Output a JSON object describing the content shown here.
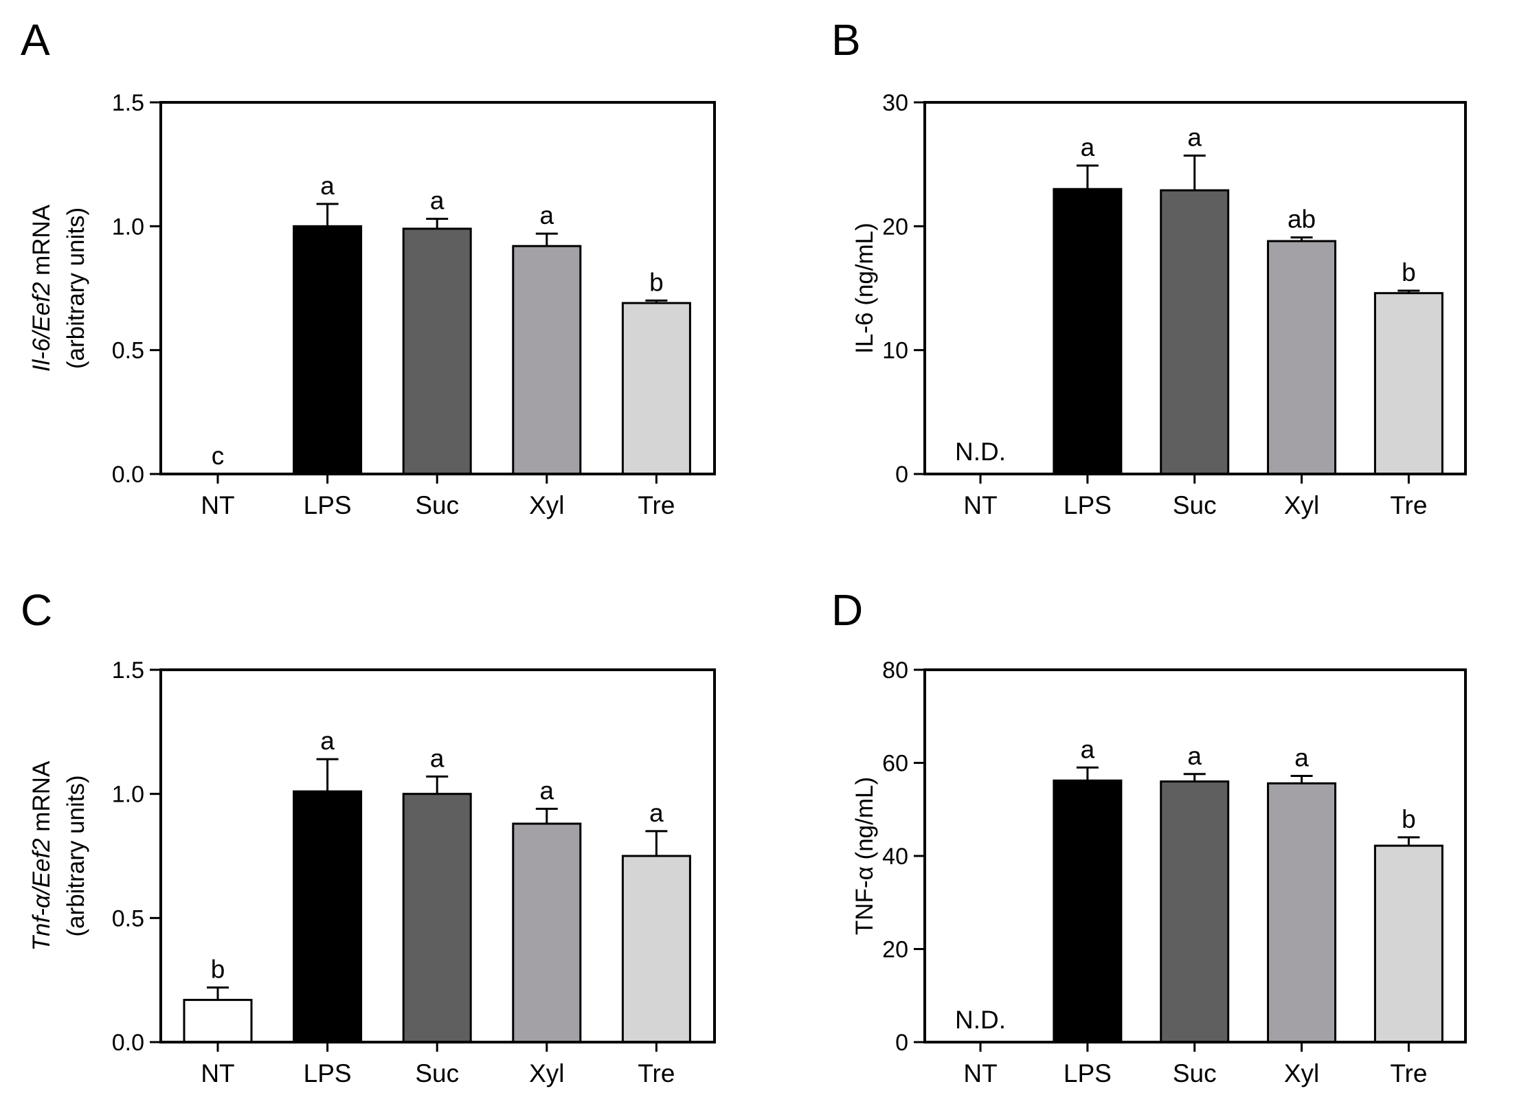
{
  "chart_data": [
    {
      "panel": "A",
      "type": "bar",
      "ylabel_parts": [
        {
          "text": "Il-6",
          "italic": true
        },
        {
          "text": "/",
          "italic": true
        },
        {
          "text": "Eef2",
          "italic": true
        },
        {
          "text": " mRNA",
          "italic": false
        }
      ],
      "ylabel_line2": "(arbitrary units)",
      "ylim": [
        0,
        1.5
      ],
      "yticks": [
        "0.0",
        "0.5",
        "1.0",
        "1.5"
      ],
      "yticks_values": [
        0,
        0.5,
        1.0,
        1.5
      ],
      "categories": [
        "NT",
        "LPS",
        "Suc",
        "Xyl",
        "Tre"
      ],
      "values": [
        0,
        1.0,
        0.99,
        0.92,
        0.69
      ],
      "errors": [
        0,
        0.09,
        0.04,
        0.05,
        0.01
      ],
      "significance": [
        "c",
        "a",
        "a",
        "a",
        "b"
      ],
      "not_detected": [
        false,
        false,
        false,
        false,
        false
      ],
      "nd_label": ""
    },
    {
      "panel": "B",
      "type": "bar",
      "ylabel_parts": [
        {
          "text": "IL-6 (ng/mL)",
          "italic": false
        }
      ],
      "ylabel_line2": "",
      "ylim": [
        0,
        30
      ],
      "yticks": [
        "0",
        "10",
        "20",
        "30"
      ],
      "yticks_values": [
        0,
        10,
        20,
        30
      ],
      "categories": [
        "NT",
        "LPS",
        "Suc",
        "Xyl",
        "Tre"
      ],
      "values": [
        0,
        23.0,
        22.9,
        18.8,
        14.6
      ],
      "errors": [
        0,
        1.9,
        2.8,
        0.3,
        0.2
      ],
      "significance": [
        "",
        "a",
        "a",
        "ab",
        "b"
      ],
      "not_detected": [
        true,
        false,
        false,
        false,
        false
      ],
      "nd_label": "N.D."
    },
    {
      "panel": "C",
      "type": "bar",
      "ylabel_parts": [
        {
          "text": "Tnf-α",
          "italic": true
        },
        {
          "text": "/",
          "italic": true
        },
        {
          "text": "Eef2",
          "italic": true
        },
        {
          "text": " mRNA",
          "italic": false
        }
      ],
      "ylabel_line2": "(arbitrary units)",
      "ylim": [
        0,
        1.5
      ],
      "yticks": [
        "0.0",
        "0.5",
        "1.0",
        "1.5"
      ],
      "yticks_values": [
        0,
        0.5,
        1.0,
        1.5
      ],
      "categories": [
        "NT",
        "LPS",
        "Suc",
        "Xyl",
        "Tre"
      ],
      "values": [
        0.17,
        1.01,
        1.0,
        0.88,
        0.75
      ],
      "errors": [
        0.05,
        0.13,
        0.07,
        0.06,
        0.1
      ],
      "significance": [
        "b",
        "a",
        "a",
        "a",
        "a"
      ],
      "not_detected": [
        false,
        false,
        false,
        false,
        false
      ],
      "nd_label": ""
    },
    {
      "panel": "D",
      "type": "bar",
      "ylabel_parts": [
        {
          "text": "TNF-α (ng/mL)",
          "italic": false
        }
      ],
      "ylabel_line2": "",
      "ylim": [
        0,
        80
      ],
      "yticks": [
        "0",
        "20",
        "40",
        "60",
        "80"
      ],
      "yticks_values": [
        0,
        20,
        40,
        60,
        80
      ],
      "categories": [
        "NT",
        "LPS",
        "Suc",
        "Xyl",
        "Tre"
      ],
      "values": [
        0,
        56.2,
        56.0,
        55.6,
        42.2
      ],
      "errors": [
        0,
        2.8,
        1.6,
        1.6,
        1.8
      ],
      "significance": [
        "",
        "a",
        "a",
        "a",
        "b"
      ],
      "not_detected": [
        true,
        false,
        false,
        false,
        false
      ],
      "nd_label": "N.D."
    }
  ],
  "bar_colors": [
    "#ffffff",
    "#000000",
    "#5f5f5f",
    "#a3a1a6",
    "#d5d5d5"
  ]
}
